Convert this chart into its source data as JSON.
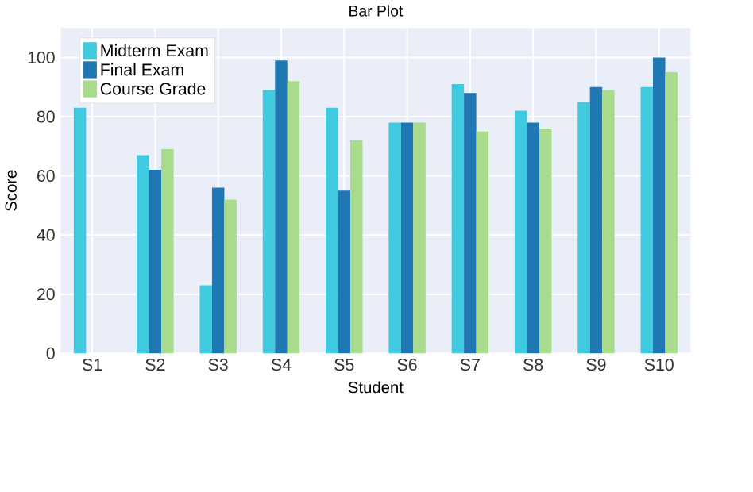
{
  "chart_data": {
    "type": "bar",
    "title": "Bar Plot",
    "xlabel": "Student",
    "ylabel": "Score",
    "categories": [
      "S1",
      "S2",
      "S3",
      "S4",
      "S5",
      "S6",
      "S7",
      "S8",
      "S9",
      "S10"
    ],
    "series": [
      {
        "name": "Midterm Exam",
        "color": "#3fcadf",
        "values": [
          83,
          67,
          23,
          89,
          83,
          78,
          91,
          82,
          85,
          90
        ]
      },
      {
        "name": "Final Exam",
        "color": "#1f77b4",
        "values": [
          null,
          62,
          56,
          99,
          55,
          78,
          88,
          78,
          90,
          100
        ]
      },
      {
        "name": "Course Grade",
        "color": "#a8dc8c",
        "values": [
          null,
          69,
          52,
          92,
          72,
          78,
          75,
          76,
          89,
          95
        ]
      }
    ],
    "ylim": [
      0,
      110
    ],
    "yticks": [
      0,
      20,
      40,
      60,
      80,
      100
    ],
    "grid": true,
    "legend": "top left"
  }
}
